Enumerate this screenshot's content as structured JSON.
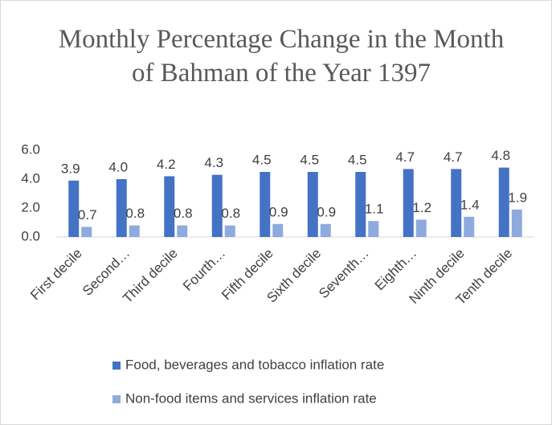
{
  "chart_data": {
    "type": "bar",
    "title": "Monthly Percentage Change in the Month of  Bahman of the Year 1397",
    "categories": [
      "First decile",
      "Second…",
      "Third decile",
      "Fourth…",
      "Fifth decile",
      "Sixth decile",
      "Seventh…",
      "Eighth…",
      "Ninth decile",
      "Tenth decile"
    ],
    "series": [
      {
        "name": "Food, beverages and tobacco inflation rate",
        "color": "#4472c4",
        "values": [
          3.9,
          4.0,
          4.2,
          4.3,
          4.5,
          4.5,
          4.5,
          4.7,
          4.7,
          4.8
        ],
        "value_labels": [
          "3.9",
          "4.0",
          "4.2",
          "4.3",
          "4.5",
          "4.5",
          "4.5",
          "4.7",
          "4.7",
          "4.8"
        ]
      },
      {
        "name": "Non-food  items and services  inflation rate",
        "color": "#8faadc",
        "values": [
          0.7,
          0.8,
          0.8,
          0.8,
          0.9,
          0.9,
          1.1,
          1.2,
          1.4,
          1.9
        ],
        "value_labels": [
          "0.7",
          "0.8",
          "0.8",
          "0.8",
          "0.9",
          "0.9",
          "1.1",
          "1.2",
          "1.4",
          "1.9"
        ]
      }
    ],
    "ylim": [
      0,
      6
    ],
    "yticks": [
      {
        "value": 0,
        "label": "0.0"
      },
      {
        "value": 2,
        "label": "2.0"
      },
      {
        "value": 4,
        "label": "4.0"
      },
      {
        "value": 6,
        "label": "6.0"
      }
    ],
    "legend": "bottom"
  }
}
